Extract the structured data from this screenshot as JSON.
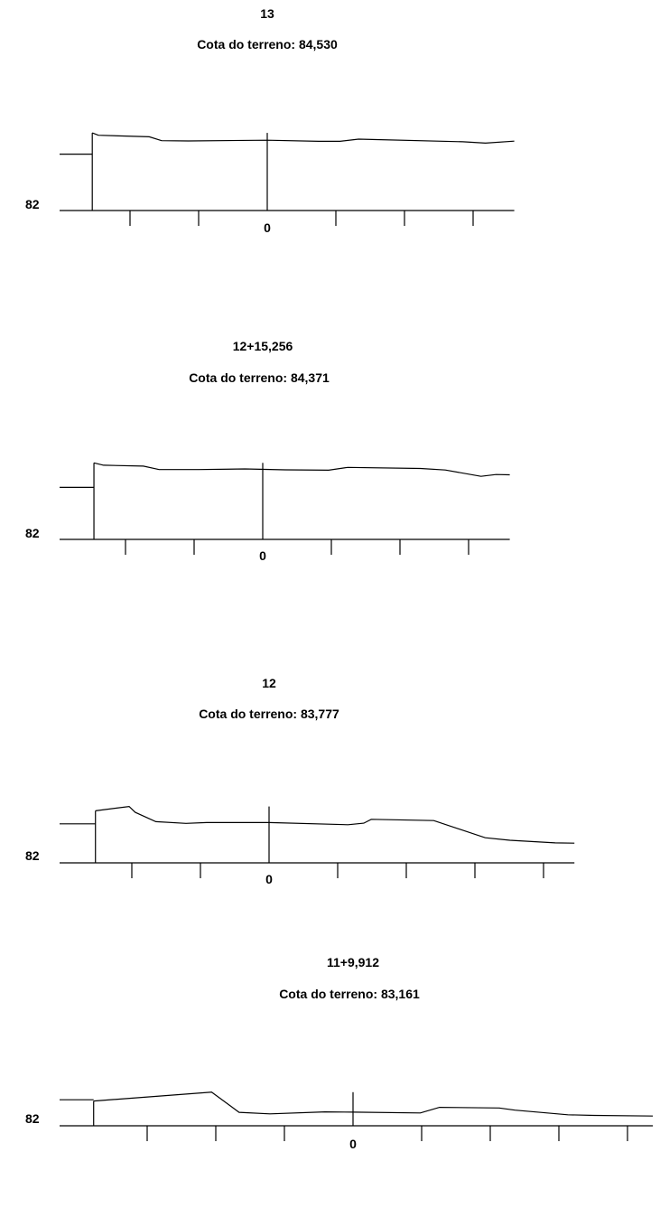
{
  "chart_data": [
    {
      "type": "line",
      "station": "13",
      "subtitle": "Cota do terreno: 84,530",
      "y_axis_label": "82",
      "x_tick_label": "0",
      "offset_line": true,
      "profile": [
        [
          -25.5,
          85.58
        ],
        [
          -24.6,
          85.47
        ],
        [
          -17.2,
          85.4
        ],
        [
          -15.4,
          85.22
        ],
        [
          -11.5,
          85.21
        ],
        [
          0,
          85.24
        ],
        [
          7.5,
          85.19
        ],
        [
          10.6,
          85.19
        ],
        [
          13.3,
          85.29
        ],
        [
          28.5,
          85.17
        ],
        [
          31.8,
          85.11
        ],
        [
          36.0,
          85.2
        ]
      ],
      "origin_level": 82,
      "axis_x_range": [
        -30.5,
        36.0
      ],
      "terrain_line_y": 84.6,
      "terrain_line_x": [
        -30.5,
        -25.5
      ],
      "ticks_x": [
        -20,
        -10,
        0,
        10,
        20,
        30
      ],
      "center_line_top": 85.58
    },
    {
      "type": "line",
      "station": "12+15,256",
      "subtitle": "Cota do terreno: 84,371",
      "y_axis_label": "82",
      "x_tick_label": "0",
      "offset_line": true,
      "profile": [
        [
          -24.6,
          85.53
        ],
        [
          -23.2,
          85.42
        ],
        [
          -17.4,
          85.38
        ],
        [
          -15.1,
          85.22
        ],
        [
          -9.3,
          85.22
        ],
        [
          -2.6,
          85.25
        ],
        [
          3.3,
          85.21
        ],
        [
          9.6,
          85.19
        ],
        [
          12.4,
          85.32
        ],
        [
          23.0,
          85.27
        ],
        [
          26.6,
          85.2
        ],
        [
          31.8,
          84.91
        ],
        [
          34.0,
          84.99
        ],
        [
          36.0,
          84.98
        ]
      ],
      "origin_level": 82,
      "axis_x_range": [
        -30.0,
        36.0
      ],
      "terrain_line_y": 84.4,
      "terrain_line_x": [
        -30.0,
        -24.6
      ],
      "ticks_x": [
        -20,
        -10,
        0,
        10,
        20,
        30
      ],
      "center_line_top": 85.53
    },
    {
      "type": "line",
      "station": "12",
      "subtitle": "Cota do terreno: 83,777",
      "y_axis_label": "82",
      "x_tick_label": "0",
      "offset_line": true,
      "profile": [
        [
          -25.3,
          84.4
        ],
        [
          -20.4,
          84.6
        ],
        [
          -19.5,
          84.33
        ],
        [
          -16.5,
          83.9
        ],
        [
          -12.1,
          83.82
        ],
        [
          -9.1,
          83.86
        ],
        [
          0,
          83.86
        ],
        [
          11.5,
          83.76
        ],
        [
          13.8,
          83.83
        ],
        [
          14.9,
          84.01
        ],
        [
          24.0,
          83.95
        ],
        [
          31.5,
          83.16
        ],
        [
          35.1,
          83.04
        ],
        [
          41.7,
          82.92
        ],
        [
          44.5,
          82.91
        ]
      ],
      "origin_level": 82,
      "axis_x_range": [
        -30.5,
        44.5
      ],
      "terrain_line_y": 83.8,
      "terrain_line_x": [
        -30.5,
        -25.3
      ],
      "ticks_x": [
        -20,
        -10,
        0,
        10,
        20,
        30,
        40
      ],
      "center_line_top": 84.6
    },
    {
      "type": "line",
      "station": "11+9,912",
      "subtitle": "Cota do terreno: 83,161",
      "y_axis_label": "82",
      "x_tick_label": "0",
      "offset_line": true,
      "profile": [
        [
          -37.8,
          83.14
        ],
        [
          -20.6,
          83.55
        ],
        [
          -16.6,
          82.62
        ],
        [
          -12.1,
          82.55
        ],
        [
          -4.1,
          82.64
        ],
        [
          0,
          82.63
        ],
        [
          9.8,
          82.59
        ],
        [
          12.6,
          82.85
        ],
        [
          21.3,
          82.82
        ],
        [
          23.6,
          82.72
        ],
        [
          31.3,
          82.51
        ],
        [
          35.1,
          82.48
        ],
        [
          43.7,
          82.45
        ]
      ],
      "origin_level": 82,
      "axis_x_range": [
        -43.0,
        43.7
      ],
      "terrain_line_y": 83.2,
      "terrain_line_x": [
        -43.0,
        -37.8
      ],
      "ticks_x": [
        -30,
        -20,
        -10,
        0,
        10,
        20,
        30,
        40
      ],
      "center_line_top": 83.55
    }
  ]
}
